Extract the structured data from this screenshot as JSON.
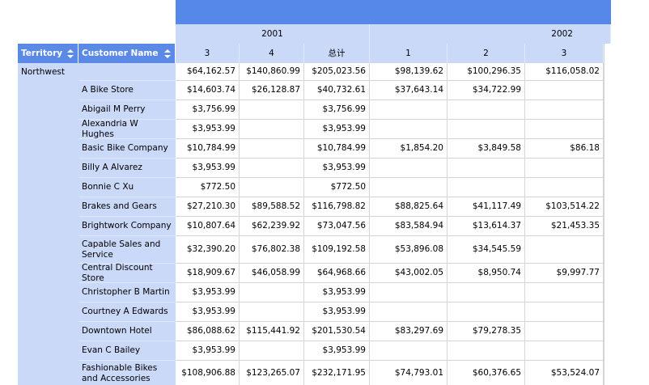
{
  "row_headers": [
    "Territory",
    "Customer Name"
  ],
  "column_groups": [
    {
      "year": "2001",
      "columns": [
        "3",
        "4",
        "总计"
      ]
    },
    {
      "year": "2002",
      "columns": [
        "1",
        "2",
        "3"
      ]
    }
  ],
  "rows": [
    {
      "territory": "Northwest",
      "customer": null,
      "cells": [
        "$64,162.57",
        "$140,860.99",
        "$205,023.56",
        "$98,139.62",
        "$100,296.35",
        "$116,058.02"
      ]
    },
    {
      "territory": null,
      "customer": "A Bike Store",
      "cells": [
        "$14,603.74",
        "$26,128.87",
        "$40,732.61",
        "$37,643.14",
        "$34,722.99",
        null
      ]
    },
    {
      "territory": null,
      "customer": "Abigail M Perry",
      "cells": [
        "$3,756.99",
        null,
        "$3,756.99",
        null,
        null,
        null
      ]
    },
    {
      "territory": null,
      "customer": "Alexandria W Hughes",
      "cells": [
        "$3,953.99",
        null,
        "$3,953.99",
        null,
        null,
        null
      ]
    },
    {
      "territory": null,
      "customer": "Basic Bike Company",
      "cells": [
        "$10,784.99",
        null,
        "$10,784.99",
        "$1,854.20",
        "$3,849.58",
        "$86.18"
      ]
    },
    {
      "territory": null,
      "customer": "Billy A Alvarez",
      "cells": [
        "$3,953.99",
        null,
        "$3,953.99",
        null,
        null,
        null
      ]
    },
    {
      "territory": null,
      "customer": "Bonnie C Xu",
      "cells": [
        "$772.50",
        null,
        "$772.50",
        null,
        null,
        null
      ]
    },
    {
      "territory": null,
      "customer": "Brakes and Gears",
      "cells": [
        "$27,210.30",
        "$89,588.52",
        "$116,798.82",
        "$88,825.64",
        "$41,117.49",
        "$103,514.22"
      ]
    },
    {
      "territory": null,
      "customer": "Brightwork Company",
      "cells": [
        "$10,807.64",
        "$62,239.92",
        "$73,047.56",
        "$83,584.94",
        "$13,614.37",
        "$21,453.35"
      ]
    },
    {
      "territory": null,
      "customer": "Capable Sales and Service",
      "cells": [
        "$32,390.20",
        "$76,802.38",
        "$109,192.58",
        "$53,896.08",
        "$34,545.59",
        null
      ]
    },
    {
      "territory": null,
      "customer": "Central Discount Store",
      "cells": [
        "$18,909.67",
        "$46,058.99",
        "$64,968.66",
        "$43,002.05",
        "$8,950.74",
        "$9,997.77"
      ]
    },
    {
      "territory": null,
      "customer": "Christopher B Martin",
      "cells": [
        "$3,953.99",
        null,
        "$3,953.99",
        null,
        null,
        null
      ]
    },
    {
      "territory": null,
      "customer": "Courtney A Edwards",
      "cells": [
        "$3,953.99",
        null,
        "$3,953.99",
        null,
        null,
        null
      ]
    },
    {
      "territory": null,
      "customer": "Downtown Hotel",
      "cells": [
        "$86,088.62",
        "$115,441.92",
        "$201,530.54",
        "$83,297.69",
        "$79,278.35",
        null
      ]
    },
    {
      "territory": null,
      "customer": "Evan C Bailey",
      "cells": [
        "$3,953.99",
        null,
        "$3,953.99",
        null,
        null,
        null
      ]
    },
    {
      "territory": null,
      "customer": "Fashionable Bikes and Accessories",
      "cells": [
        "$108,906.88",
        "$123,265.07",
        "$232,171.95",
        "$74,793.01",
        "$60,376.65",
        "$53,524.07"
      ]
    }
  ]
}
